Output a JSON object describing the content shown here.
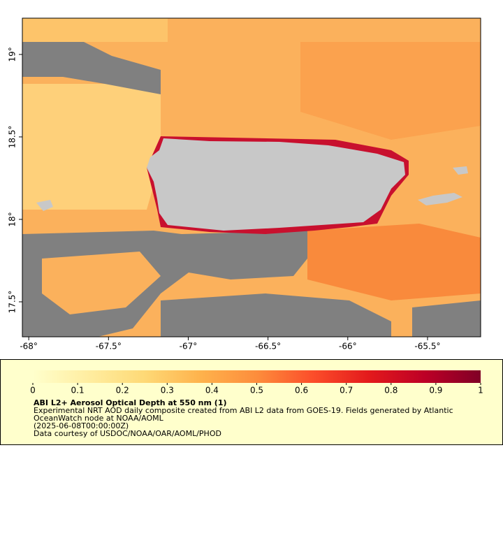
{
  "chart_data": {
    "type": "map",
    "xlim": [
      -68.04,
      -65.167
    ],
    "ylim": [
      17.288,
      19.22
    ],
    "xticks": [
      {
        "value": -68,
        "label": "-68°"
      },
      {
        "value": -67.5,
        "label": "-67.5°"
      },
      {
        "value": -67,
        "label": "-67°"
      },
      {
        "value": -66.5,
        "label": "-66.5°"
      },
      {
        "value": -66,
        "label": "-66°"
      },
      {
        "value": -65.5,
        "label": "-65.5°"
      }
    ],
    "yticks": [
      {
        "value": 17.5,
        "label": "17.5°"
      },
      {
        "value": 18,
        "label": "18°"
      },
      {
        "value": 18.5,
        "label": "18.5°"
      },
      {
        "value": 19,
        "label": "19°"
      }
    ],
    "colorbar": {
      "lim": [
        0,
        1
      ],
      "ticks": [
        0,
        0.1,
        0.2,
        0.3,
        0.4,
        0.5,
        0.6,
        0.7,
        0.8,
        0.9,
        1
      ],
      "colors": [
        "#ffffcc",
        "#ffeda0",
        "#fed976",
        "#feb24c",
        "#fd8d3c",
        "#fc4e2a",
        "#e31a1c",
        "#bd0026",
        "#800026"
      ]
    },
    "title": "ABI L2+ Aerosol Optical Depth at 550 nm (1)",
    "description": [
      "Experimental NRT AOD daily composite created from ABI L2 data from GOES-19. Fields generated by Atlantic",
      "OceanWatch node at NOAA/AOML",
      "(2025-06-08T00:00:00Z)",
      "Data courtesy of USDOC/NOAA/OAR/AOML/PHOD"
    ]
  }
}
